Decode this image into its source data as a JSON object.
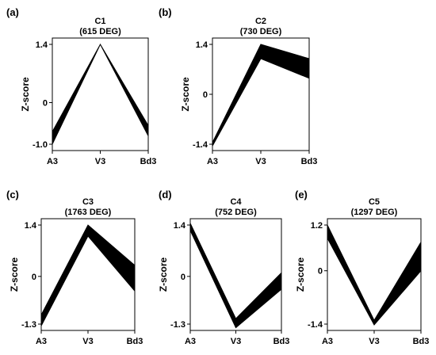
{
  "chart_data": [
    {
      "type": "area",
      "panel_label": "(a)",
      "title": "C1",
      "subtitle": "(615 DEG)",
      "ylabel": "Z-score",
      "categories": [
        "A3",
        "V3",
        "Bd3"
      ],
      "yticks": [
        "1.4",
        "0",
        "-1.0"
      ],
      "ylim": [
        -1.0,
        1.4
      ],
      "series": [
        {
          "values": [
            -0.7,
            1.4,
            -0.55
          ]
        },
        {
          "values": [
            -1.0,
            1.4,
            -0.8
          ]
        }
      ]
    },
    {
      "type": "area",
      "panel_label": "(b)",
      "title": "C2",
      "subtitle": "(730 DEG)",
      "ylabel": "Z-score",
      "categories": [
        "A3",
        "V3",
        "Bd3"
      ],
      "yticks": [
        "1.4",
        "0",
        "-1.4"
      ],
      "ylim": [
        -1.4,
        1.4
      ],
      "series": [
        {
          "values": [
            -1.35,
            1.4,
            1.0
          ]
        },
        {
          "values": [
            -1.45,
            1.0,
            0.45
          ]
        }
      ]
    },
    {
      "type": "area",
      "panel_label": "(c)",
      "title": "C3",
      "subtitle": "(1763 DEG)",
      "ylabel": "Z-score",
      "categories": [
        "A3",
        "V3",
        "Bd3"
      ],
      "yticks": [
        "1.4",
        "0",
        "-1.3"
      ],
      "ylim": [
        -1.3,
        1.4
      ],
      "series": [
        {
          "values": [
            -1.05,
            1.4,
            0.3
          ]
        },
        {
          "values": [
            -1.35,
            1.1,
            -0.4
          ]
        }
      ]
    },
    {
      "type": "area",
      "panel_label": "(d)",
      "title": "C4",
      "subtitle": "(752 DEG)",
      "ylabel": "Z-score",
      "categories": [
        "A3",
        "V3",
        "Bd3"
      ],
      "yticks": [
        "1.4",
        "0",
        "-1.3"
      ],
      "ylim": [
        -1.3,
        1.4
      ],
      "series": [
        {
          "values": [
            1.45,
            -1.15,
            0.1
          ]
        },
        {
          "values": [
            1.25,
            -1.4,
            -0.35
          ]
        }
      ]
    },
    {
      "type": "area",
      "panel_label": "(e)",
      "title": "C5",
      "subtitle": "(1297 DEG)",
      "ylabel": "Z-score",
      "categories": [
        "A3",
        "V3",
        "Bd3"
      ],
      "yticks": [
        "1.2",
        "0",
        "-1.4"
      ],
      "ylim": [
        -1.4,
        1.2
      ],
      "series": [
        {
          "values": [
            1.2,
            -1.3,
            0.75
          ]
        },
        {
          "values": [
            0.85,
            -1.42,
            0.0
          ]
        }
      ]
    }
  ]
}
